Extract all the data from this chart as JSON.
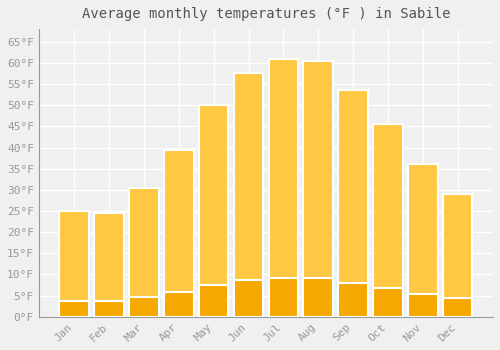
{
  "title": "Average monthly temperatures (°F ) in Sabile",
  "months": [
    "Jan",
    "Feb",
    "Mar",
    "Apr",
    "May",
    "Jun",
    "Jul",
    "Aug",
    "Sep",
    "Oct",
    "Nov",
    "Dec"
  ],
  "values": [
    25,
    24.5,
    30.5,
    39.5,
    50,
    57.5,
    61,
    60.5,
    53.5,
    45.5,
    36,
    29
  ],
  "bar_color_top": "#FFC844",
  "bar_color_bottom": "#F5A800",
  "bar_edge_color": "#FFFFFF",
  "background_color": "#f0f0f0",
  "grid_color": "#ffffff",
  "title_fontsize": 10,
  "tick_fontsize": 8,
  "ylim": [
    0,
    68
  ],
  "yticks": [
    0,
    5,
    10,
    15,
    20,
    25,
    30,
    35,
    40,
    45,
    50,
    55,
    60,
    65
  ],
  "ytick_labels": [
    "0°F",
    "5°F",
    "10°F",
    "15°F",
    "20°F",
    "25°F",
    "30°F",
    "35°F",
    "40°F",
    "45°F",
    "50°F",
    "55°F",
    "60°F",
    "65°F"
  ],
  "tick_color": "#999999",
  "title_color": "#555555",
  "spine_color": "#999999"
}
